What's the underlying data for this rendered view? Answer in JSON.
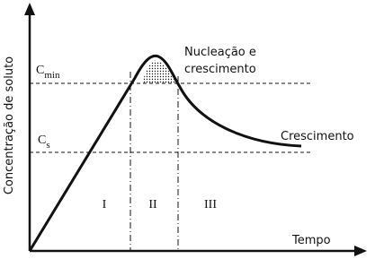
{
  "axes": {
    "y_label": "Concentração de soluto",
    "x_label": "Tempo"
  },
  "levels": [
    {
      "base": "C",
      "sub": "min"
    },
    {
      "base": "C",
      "sub": "s"
    }
  ],
  "annotations": {
    "nucleation": [
      "Nucleação e",
      "crescimento"
    ],
    "growth": "Crescimento"
  },
  "stages": [
    "I",
    "II",
    "III"
  ]
}
